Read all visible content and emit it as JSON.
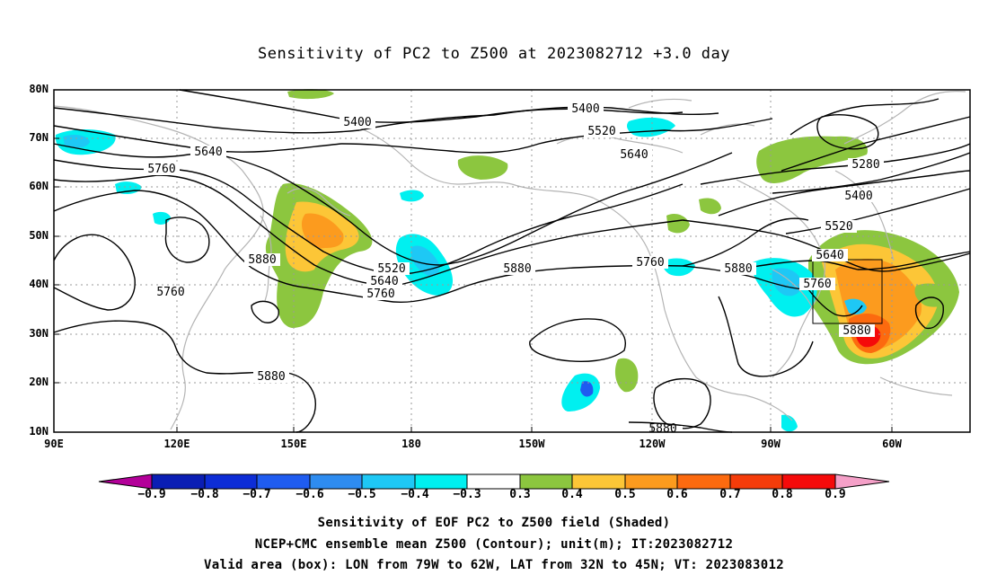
{
  "title": "Sensitivity of PC2 to Z500 at 2023082712 +3.0 day",
  "lat_labels": [
    "80N",
    "70N",
    "60N",
    "50N",
    "40N",
    "30N",
    "20N",
    "10N"
  ],
  "lon_labels": [
    "90E",
    "120E",
    "150E",
    "180",
    "150W",
    "120W",
    "90W",
    "60W"
  ],
  "contour_labels": [
    "5400",
    "5400",
    "5520",
    "5640",
    "5640",
    "5760",
    "5760",
    "5280",
    "5400",
    "5520",
    "5640",
    "5760",
    "5880",
    "5880",
    "5880",
    "5520",
    "5640",
    "5760",
    "5880",
    "5760",
    "5880",
    "5880"
  ],
  "colorbar": {
    "labels": [
      "−0.9",
      "−0.8",
      "−0.7",
      "−0.6",
      "−0.5",
      "−0.4",
      "−0.3",
      "0.3",
      "0.4",
      "0.5",
      "0.6",
      "0.7",
      "0.8",
      "0.9"
    ],
    "colors": [
      "#b30099",
      "#0a1eb4",
      "#0d2dd6",
      "#1f5cf0",
      "#2e8cf0",
      "#1ec8f5",
      "#00f0f0",
      "#ffffff",
      "#8cc63f",
      "#fcc637",
      "#fc9b1e",
      "#fc6a0f",
      "#f53c0a",
      "#f50a0a",
      "#f5a0c8"
    ]
  },
  "captions": [
    "Sensitivity of EOF PC2 to Z500 field (Shaded)",
    "NCEP+CMC ensemble mean Z500 (Contour); unit(m); IT:2023082712",
    "Valid area (box): LON from 79W to 62W, LAT from 32N to 45N; VT: 2023083012"
  ]
}
